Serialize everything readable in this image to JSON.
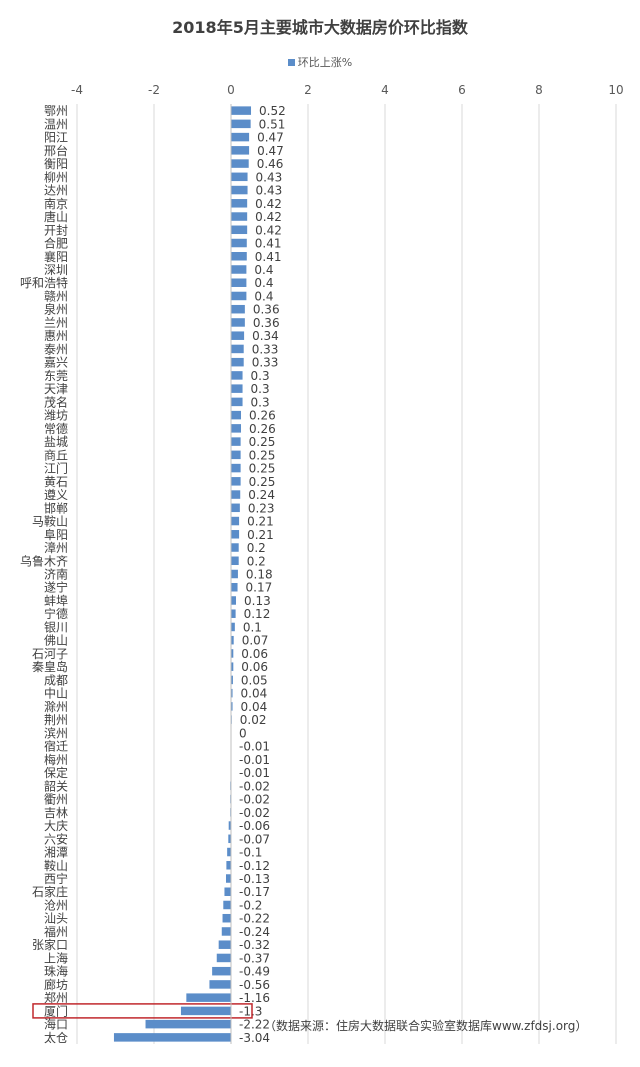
{
  "chart_data": {
    "type": "bar",
    "orientation": "horizontal",
    "title": "2018年5月主要城市大数据房价环比指数",
    "series": [
      {
        "name": "环比上涨%",
        "color": "#5b8dc9"
      }
    ],
    "x_ticks": [
      "-4",
      "-2",
      "0",
      "2",
      "4",
      "6",
      "8",
      "10"
    ],
    "xlim": [
      -4,
      10
    ],
    "grid": "vertical",
    "legend_position": "top",
    "categories": [
      "鄂州",
      "温州",
      "阳江",
      "邢台",
      "衡阳",
      "柳州",
      "达州",
      "南京",
      "唐山",
      "开封",
      "合肥",
      "襄阳",
      "深圳",
      "呼和浩特",
      "赣州",
      "泉州",
      "兰州",
      "惠州",
      "泰州",
      "嘉兴",
      "东莞",
      "天津",
      "茂名",
      "潍坊",
      "常德",
      "盐城",
      "商丘",
      "江门",
      "黄石",
      "遵义",
      "邯郸",
      "马鞍山",
      "阜阳",
      "漳州",
      "乌鲁木齐",
      "济南",
      "遂宁",
      "蚌埠",
      "宁德",
      "银川",
      "佛山",
      "石河子",
      "秦皇岛",
      "成都",
      "中山",
      "滁州",
      "荆州",
      "滨州",
      "宿迁",
      "梅州",
      "保定",
      "韶关",
      "衢州",
      "吉林",
      "大庆",
      "六安",
      "湘潭",
      "鞍山",
      "西宁",
      "石家庄",
      "沧州",
      "汕头",
      "福州",
      "张家口",
      "上海",
      "珠海",
      "廊坊",
      "郑州",
      "厦门",
      "海口",
      "太仓"
    ],
    "values": [
      0.52,
      0.51,
      0.47,
      0.47,
      0.46,
      0.43,
      0.43,
      0.42,
      0.42,
      0.42,
      0.41,
      0.41,
      0.4,
      0.4,
      0.4,
      0.36,
      0.36,
      0.34,
      0.33,
      0.33,
      0.3,
      0.3,
      0.3,
      0.26,
      0.26,
      0.25,
      0.25,
      0.25,
      0.25,
      0.24,
      0.23,
      0.21,
      0.21,
      0.2,
      0.2,
      0.18,
      0.17,
      0.13,
      0.12,
      0.1,
      0.07,
      0.06,
      0.06,
      0.05,
      0.04,
      0.04,
      0.02,
      0,
      -0.01,
      -0.01,
      -0.01,
      -0.02,
      -0.02,
      -0.02,
      -0.06,
      -0.07,
      -0.1,
      -0.12,
      -0.13,
      -0.17,
      -0.2,
      -0.22,
      -0.24,
      -0.32,
      -0.37,
      -0.49,
      -0.56,
      -1.16,
      -1.3,
      -2.22,
      -3.04
    ],
    "highlight": "厦门",
    "highlight_color": "#c0282d"
  },
  "source_note": "（数据来源：住房大数据联合实验室数据库www.zfdsj.org）"
}
